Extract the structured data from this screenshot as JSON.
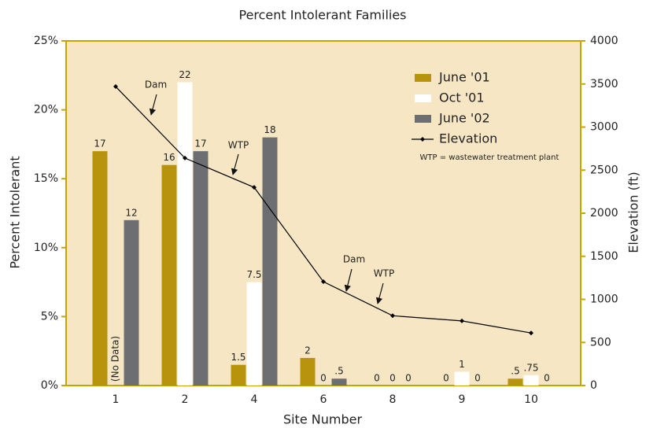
{
  "chart_data": {
    "type": "bar",
    "title": "Percent Intolerant Families",
    "x_label": "Site Number",
    "y_label": "Percent Intolerant",
    "y2_label": "Elevation (ft)",
    "categories": [
      "1",
      "2",
      "4",
      "6",
      "8",
      "9",
      "10"
    ],
    "series": [
      {
        "name": "June '01",
        "color": "#b8940e",
        "values": [
          17,
          16,
          1.5,
          2,
          0,
          0,
          0.5
        ],
        "value_labels": [
          "17",
          "16",
          "1.5",
          "2",
          "0",
          "0",
          ".5"
        ]
      },
      {
        "name": "Oct '01",
        "color": "#ffffff",
        "values": [
          null,
          22,
          7.5,
          0,
          0,
          1,
          0.75
        ],
        "value_labels": [
          null,
          "22",
          "7.5",
          "0",
          "0",
          "1",
          ".75"
        ]
      },
      {
        "name": "June '02",
        "color": "#6d6e71",
        "values": [
          12,
          17,
          18,
          0.5,
          0,
          0,
          0
        ],
        "value_labels": [
          "12",
          "17",
          "18",
          ".5",
          "0",
          "0",
          "0"
        ]
      },
      {
        "name": "Elevation",
        "color": "#000000",
        "kind": "line",
        "axis": "y2",
        "values": [
          3470,
          2640,
          2300,
          1205,
          810,
          750,
          610
        ]
      }
    ],
    "ylim": [
      0,
      25
    ],
    "yticks": [
      {
        "value": 0,
        "label": "0%"
      },
      {
        "value": 5,
        "label": "5%"
      },
      {
        "value": 10,
        "label": "10%"
      },
      {
        "value": 15,
        "label": "15%"
      },
      {
        "value": 20,
        "label": "20%"
      },
      {
        "value": 25,
        "label": "25%"
      }
    ],
    "y2lim": [
      0,
      4000
    ],
    "y2ticks": [
      0,
      500,
      1000,
      1500,
      2000,
      2500,
      3000,
      3500,
      4000
    ],
    "legend": "upper right",
    "annotations": [
      "Dam",
      "WTP",
      "Dam",
      "WTP",
      "WTP = wastewater treatment plant",
      "(No Data)"
    ],
    "background": "#f6e6c3",
    "frame_color": "#c9a400"
  }
}
